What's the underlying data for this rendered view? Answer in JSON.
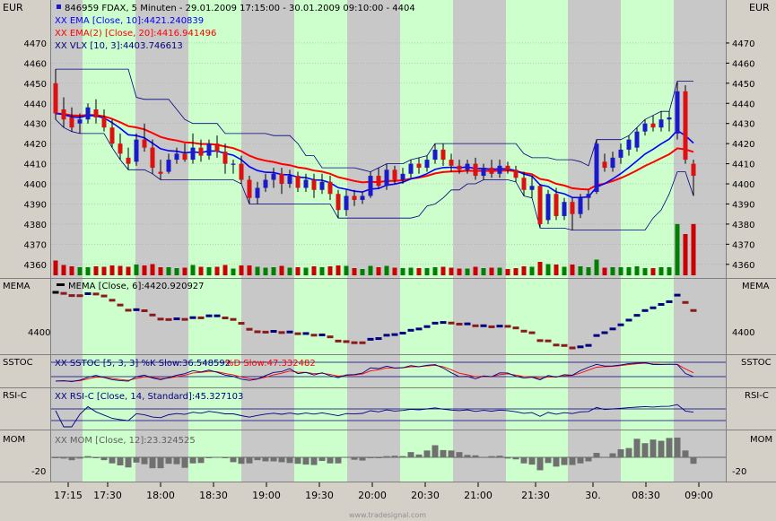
{
  "colors": {
    "panel_bg": "#ffffff",
    "band_green": "#ccffcc",
    "band_gray": "#c8c8c8",
    "up_candle": "#1a1acc",
    "down_candle": "#dd1111",
    "ema_fast": "#0000ff",
    "ema_slow": "#ff0000",
    "vlx": "#000080",
    "volume_up": "#008000",
    "volume_down": "#cc0000",
    "mom_bar": "#707070"
  },
  "header": {
    "currency_left": "EUR",
    "currency_right": "EUR",
    "legend_main": "846959  FDAX, 5 Minuten - 29.01.2009 17:15:00 - 30.01.2009 09:10:00 - 4404",
    "legend_ema_fast": "XX EMA [Close, 10]:4421.240839",
    "legend_ema_slow": "XX EMA(2) [Close, 20]:4416.941496",
    "legend_vlx": "XX VLX [10, 3]:4403.746613"
  },
  "panels": {
    "mema": {
      "label_left": "MEMA",
      "label_right": "MEMA",
      "legend": "MEMA [Close, 6]:4420.920927",
      "tick": "4400"
    },
    "sstoc": {
      "label_left": "SSTOC",
      "label_right": "SSTOC",
      "legend_k": "XX SSTOC [5, 3, 3] %K Slow:36.548592",
      "legend_d": "%D Slow:47.332482"
    },
    "rsi": {
      "label_left": "RSI-C",
      "label_right": "RSI-C",
      "legend": "XX RSI-C [Close, 14, Standard]:45.327103"
    },
    "mom": {
      "label_left": "MOM",
      "label_right": "MOM",
      "legend": "XX MOM [Close, 12]:23.324525",
      "tick": "-20"
    }
  },
  "footer": {
    "watermark": "www.tradesignal.com"
  },
  "chart_data": {
    "type": "candlestick",
    "instrument": "FDAX",
    "interval": "5 Minuten",
    "y_ticks": [
      4360,
      4370,
      4380,
      4390,
      4400,
      4410,
      4420,
      4430,
      4440,
      4450,
      4460,
      4470
    ],
    "ylim": [
      4355,
      4478
    ],
    "x_tick_labels": [
      "17:15",
      "17:30",
      "18:00",
      "18:30",
      "19:00",
      "19:30",
      "20:00",
      "20:30",
      "21:00",
      "21:30",
      "30.",
      "08:30",
      "09:00"
    ],
    "candles_ohlc": [
      [
        4450,
        4457,
        4432,
        4435
      ],
      [
        4437,
        4443,
        4428,
        4432
      ],
      [
        4433,
        4438,
        4426,
        4428
      ],
      [
        4430,
        4435,
        4425,
        4432
      ],
      [
        4432,
        4440,
        4430,
        4438
      ],
      [
        4437,
        4442,
        4430,
        4433
      ],
      [
        4433,
        4437,
        4426,
        4428
      ],
      [
        4428,
        4432,
        4418,
        4420
      ],
      [
        4420,
        4425,
        4412,
        4415
      ],
      [
        4413,
        4418,
        4407,
        4410
      ],
      [
        4411,
        4425,
        4409,
        4422
      ],
      [
        4422,
        4430,
        4416,
        4418
      ],
      [
        4418,
        4422,
        4405,
        4408
      ],
      [
        4406,
        4412,
        4402,
        4405
      ],
      [
        4406,
        4415,
        4405,
        4412
      ],
      [
        4412,
        4418,
        4410,
        4415
      ],
      [
        4415,
        4420,
        4411,
        4412
      ],
      [
        4412,
        4425,
        4410,
        4418
      ],
      [
        4418,
        4422,
        4411,
        4414
      ],
      [
        4414,
        4422,
        4412,
        4420
      ],
      [
        4420,
        4424,
        4413,
        4416
      ],
      [
        4416,
        4420,
        4405,
        4410
      ],
      [
        4410,
        4412,
        4405,
        4410
      ],
      [
        4410,
        4414,
        4400,
        4402
      ],
      [
        4402,
        4404,
        4390,
        4393
      ],
      [
        4393,
        4401,
        4390,
        4398
      ],
      [
        4398,
        4405,
        4396,
        4402
      ],
      [
        4402,
        4408,
        4398,
        4405
      ],
      [
        4405,
        4408,
        4395,
        4400
      ],
      [
        4400,
        4407,
        4398,
        4404
      ],
      [
        4404,
        4406,
        4396,
        4398
      ],
      [
        4398,
        4405,
        4396,
        4402
      ],
      [
        4402,
        4405,
        4393,
        4397
      ],
      [
        4397,
        4405,
        4395,
        4401
      ],
      [
        4401,
        4404,
        4392,
        4395
      ],
      [
        4395,
        4397,
        4383,
        4387
      ],
      [
        4387,
        4397,
        4384,
        4394
      ],
      [
        4394,
        4397,
        4389,
        4392
      ],
      [
        4392,
        4396,
        4390,
        4394
      ],
      [
        4394,
        4406,
        4393,
        4404
      ],
      [
        4404,
        4408,
        4398,
        4399
      ],
      [
        4399,
        4410,
        4397,
        4407
      ],
      [
        4407,
        4409,
        4400,
        4402
      ],
      [
        4402,
        4408,
        4400,
        4405
      ],
      [
        4405,
        4412,
        4403,
        4410
      ],
      [
        4410,
        4413,
        4405,
        4408
      ],
      [
        4408,
        4414,
        4406,
        4412
      ],
      [
        4412,
        4420,
        4410,
        4417
      ],
      [
        4417,
        4420,
        4409,
        4412
      ],
      [
        4412,
        4415,
        4406,
        4409
      ],
      [
        4409,
        4412,
        4405,
        4407
      ],
      [
        4407,
        4412,
        4405,
        4410
      ],
      [
        4410,
        4413,
        4402,
        4404
      ],
      [
        4404,
        4410,
        4402,
        4408
      ],
      [
        4408,
        4412,
        4403,
        4405
      ],
      [
        4405,
        4412,
        4403,
        4409
      ],
      [
        4409,
        4411,
        4405,
        4407
      ],
      [
        4407,
        4409,
        4401,
        4403
      ],
      [
        4403,
        4406,
        4394,
        4397
      ],
      [
        4397,
        4404,
        4393,
        4399
      ],
      [
        4399,
        4400,
        4378,
        4380
      ],
      [
        4382,
        4397,
        4380,
        4395
      ],
      [
        4395,
        4398,
        4382,
        4384
      ],
      [
        4384,
        4393,
        4382,
        4391
      ],
      [
        4391,
        4393,
        4377,
        4385
      ],
      [
        4385,
        4395,
        4383,
        4393
      ],
      [
        4393,
        4397,
        4387,
        4395
      ],
      [
        4396,
        4422,
        4395,
        4420
      ],
      [
        4411,
        4415,
        4406,
        4408
      ],
      [
        4408,
        4416,
        4406,
        4413
      ],
      [
        4413,
        4420,
        4410,
        4417
      ],
      [
        4417,
        4424,
        4414,
        4422
      ],
      [
        4418,
        4428,
        4416,
        4426
      ],
      [
        4426,
        4432,
        4424,
        4430
      ],
      [
        4430,
        4434,
        4426,
        4428
      ],
      [
        4428,
        4436,
        4426,
        4432
      ],
      [
        4432,
        4436,
        4426,
        4433
      ],
      [
        4425,
        4451,
        4422,
        4446
      ],
      [
        4446,
        4449,
        4410,
        4412
      ],
      [
        4410,
        4412,
        4394,
        4404
      ]
    ],
    "series": [
      {
        "name": "EMA [Close, 10]",
        "last": 4421.240839
      },
      {
        "name": "EMA(2) [Close, 20]",
        "last": 4416.941496
      },
      {
        "name": "VLX [10, 3]",
        "last": 4403.746613
      },
      {
        "name": "MEMA [Close, 6]",
        "last": 4420.920927
      },
      {
        "name": "SSTOC %K Slow",
        "last": 36.548592
      },
      {
        "name": "SSTOC %D Slow",
        "last": 47.332482
      },
      {
        "name": "RSI-C [Close, 14, Standard]",
        "last": 45.327103
      },
      {
        "name": "MOM [Close, 12]",
        "last": 23.324525
      }
    ]
  }
}
